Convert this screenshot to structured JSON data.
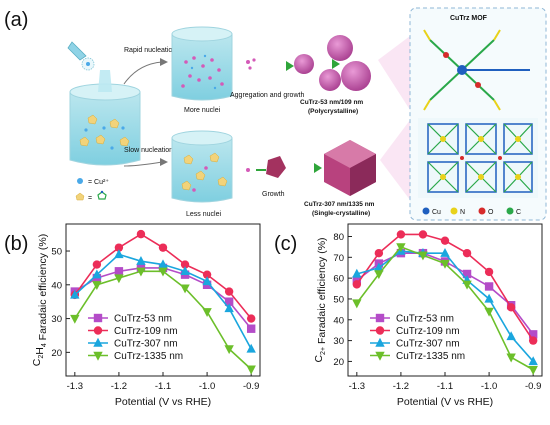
{
  "panels": {
    "a": "(a)",
    "b": "(b)",
    "c": "(c)"
  },
  "schematic": {
    "fast_label": "Rapid nucleation",
    "slow_label": "Slow nucleation",
    "more_nuclei": "More nuclei",
    "less_nuclei": "Less nuclei",
    "aggregation": "Aggregation and growth",
    "growth": "Growth",
    "product_fast": "CuTrz-53 nm/109 nm",
    "product_fast_sub": "(Polycrystalline)",
    "product_slow": "CuTrz-307 nm/1335 nm",
    "product_slow_sub": "(Single-crystalline)",
    "legend_cu": "= Cu²⁺",
    "legend_trz": "=",
    "mof_title": "CuTrz MOF",
    "elements": [
      {
        "label": "Cu",
        "color": "#1f5fbf"
      },
      {
        "label": "N",
        "color": "#e8d21a"
      },
      {
        "label": "O",
        "color": "#d62b2b"
      },
      {
        "label": "C",
        "color": "#2aa84a"
      }
    ]
  },
  "chart_data": [
    {
      "type": "line",
      "panel": "b",
      "ylabel_main": "C",
      "ylabel_sub1": "2",
      "ylabel_mid": "H",
      "ylabel_sub2": "4",
      "ylabel_tail": " Faradaic efficiency (%)",
      "xlabel": "Potential (V vs RHE)",
      "x": [
        -1.3,
        -1.25,
        -1.2,
        -1.15,
        -1.1,
        -1.05,
        -1.0,
        -0.95,
        -0.9
      ],
      "xticks": [
        "-1.3",
        "-1.2",
        "-1.1",
        "-1.0",
        "-0.9"
      ],
      "yticks": [
        "20",
        "30",
        "40",
        "50"
      ],
      "xlim": [
        -1.32,
        -0.88
      ],
      "ylim": [
        13,
        58
      ],
      "legend_position": "bottom-right",
      "series": [
        {
          "name": "CuTrz-53 nm",
          "color": "#b44cc8",
          "marker": "square",
          "values": [
            38,
            42,
            44,
            45,
            45,
            43,
            40,
            35,
            27
          ]
        },
        {
          "name": "CuTrz-109 nm",
          "color": "#ec2d58",
          "marker": "circle",
          "values": [
            37,
            46,
            51,
            55,
            51,
            46,
            43,
            38,
            30
          ]
        },
        {
          "name": "CuTrz-307 nm",
          "color": "#1aa6de",
          "marker": "triangle-up",
          "values": [
            37,
            43,
            49,
            47,
            46,
            44,
            41,
            33,
            21
          ]
        },
        {
          "name": "CuTrz-1335 nm",
          "color": "#6cbf2a",
          "marker": "triangle-down",
          "values": [
            30,
            40,
            42,
            44,
            44,
            39,
            32,
            21,
            15
          ]
        }
      ]
    },
    {
      "type": "line",
      "panel": "c",
      "ylabel_main": "C",
      "ylabel_sub1": "2+",
      "ylabel_mid": "",
      "ylabel_sub2": "",
      "ylabel_tail": " Faradaic efficiency (%)",
      "xlabel": "Potential (V vs RHE)",
      "x": [
        -1.3,
        -1.25,
        -1.2,
        -1.15,
        -1.1,
        -1.05,
        -1.0,
        -0.95,
        -0.9
      ],
      "xticks": [
        "-1.3",
        "-1.2",
        "-1.1",
        "-1.0",
        "-0.9"
      ],
      "yticks": [
        "20",
        "30",
        "40",
        "50",
        "60",
        "70",
        "80"
      ],
      "xlim": [
        -1.32,
        -0.88
      ],
      "ylim": [
        13,
        86
      ],
      "legend_position": "bottom-right",
      "series": [
        {
          "name": "CuTrz-53 nm",
          "color": "#b44cc8",
          "marker": "square",
          "values": [
            59,
            67,
            72,
            72,
            68,
            62,
            56,
            47,
            33
          ]
        },
        {
          "name": "CuTrz-109 nm",
          "color": "#ec2d58",
          "marker": "circle",
          "values": [
            57,
            72,
            81,
            81,
            78,
            72,
            63,
            46,
            30
          ]
        },
        {
          "name": "CuTrz-307 nm",
          "color": "#1aa6de",
          "marker": "triangle-up",
          "values": [
            62,
            65,
            73,
            72,
            72,
            59,
            50,
            32,
            20
          ]
        },
        {
          "name": "CuTrz-1335 nm",
          "color": "#6cbf2a",
          "marker": "triangle-down",
          "values": [
            48,
            62,
            75,
            71,
            67,
            57,
            44,
            22,
            16
          ]
        }
      ]
    }
  ]
}
